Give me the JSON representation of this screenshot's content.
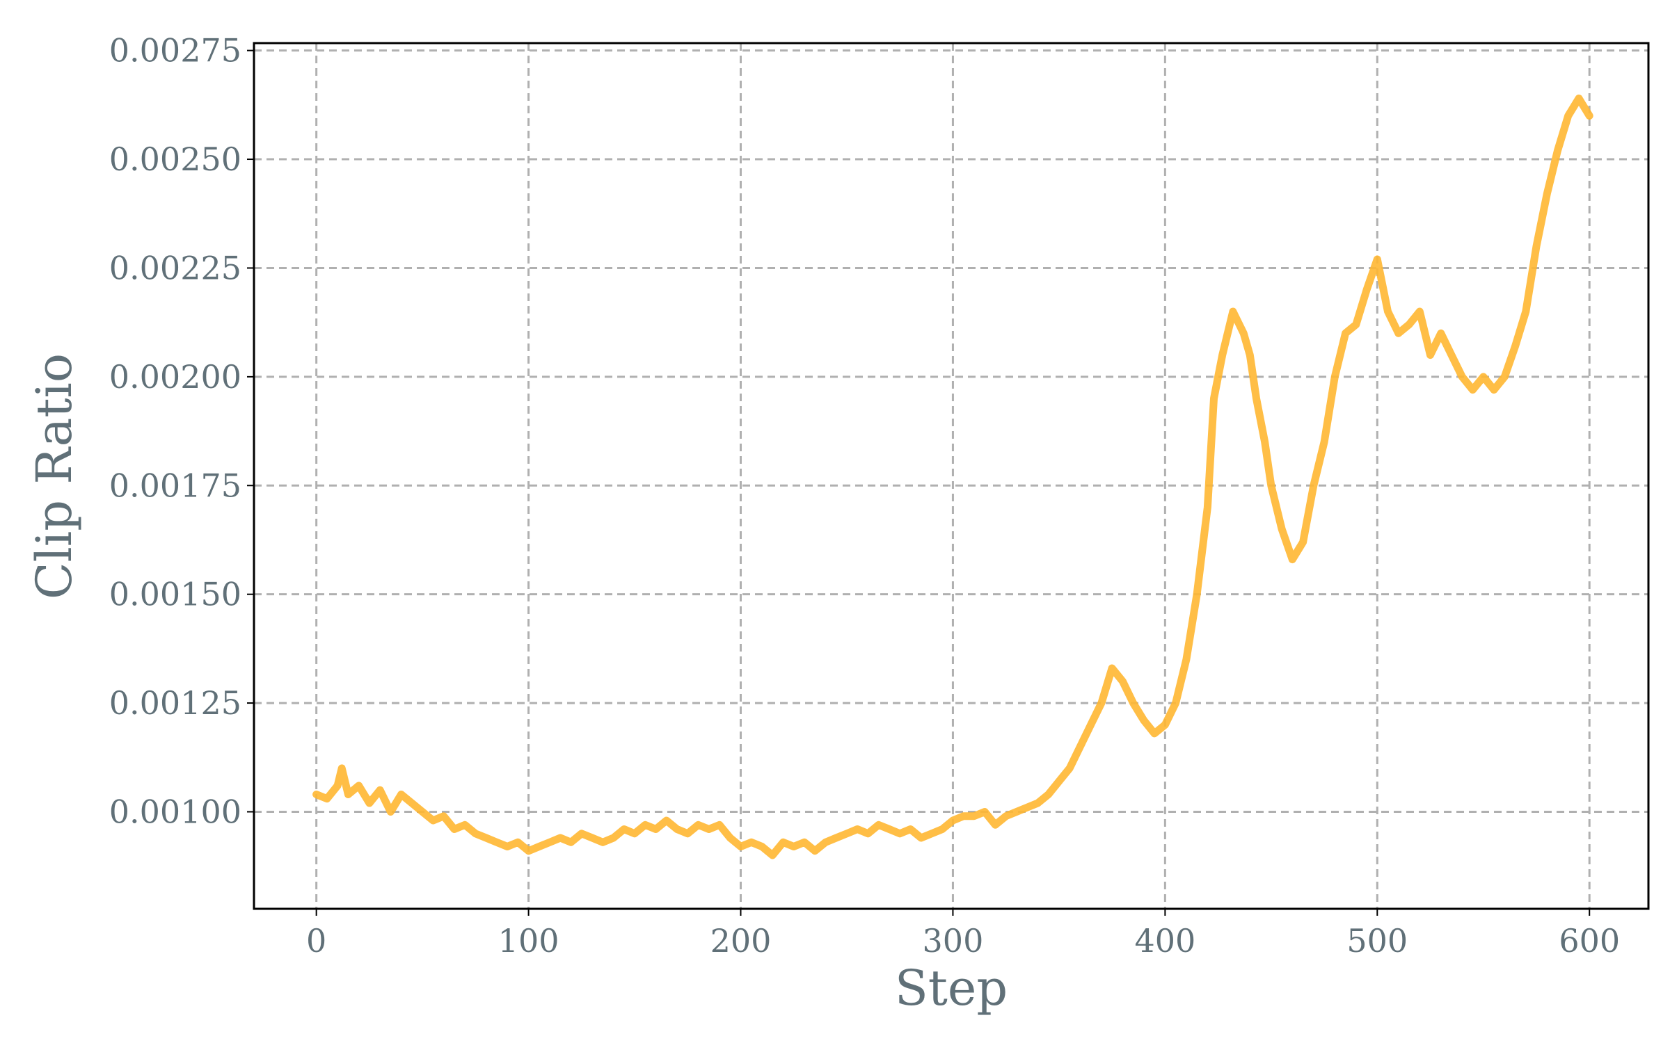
{
  "chart_data": {
    "type": "line",
    "title": "",
    "xlabel": "Step",
    "ylabel": "Clip Ratio",
    "xlim": [
      -29.4,
      627.8
    ],
    "ylim": [
      0.000777,
      0.002767
    ],
    "xticks": [
      0,
      100,
      200,
      300,
      400,
      500,
      600
    ],
    "yticks": [
      "0.00100",
      "0.00125",
      "0.00150",
      "0.00175",
      "0.00200",
      "0.00225",
      "0.00250",
      "0.00275"
    ],
    "grid": true,
    "color": "#ffb732",
    "series": [
      {
        "x": [
          0,
          5,
          10,
          12,
          15,
          20,
          25,
          30,
          35,
          40,
          45,
          50,
          55,
          60,
          65,
          70,
          75,
          80,
          85,
          90,
          95,
          100,
          105,
          110,
          115,
          120,
          125,
          130,
          135,
          140,
          145,
          150,
          155,
          160,
          165,
          170,
          175,
          180,
          185,
          190,
          195,
          200,
          205,
          210,
          215,
          220,
          225,
          230,
          235,
          240,
          245,
          250,
          255,
          260,
          265,
          270,
          275,
          280,
          285,
          290,
          295,
          300,
          305,
          310,
          315,
          320,
          325,
          330,
          335,
          340,
          345,
          350,
          355,
          360,
          365,
          370,
          375,
          380,
          385,
          390,
          395,
          400,
          405,
          410,
          415,
          420,
          423,
          427,
          432,
          437,
          440,
          443,
          447,
          450,
          455,
          460,
          465,
          470,
          475,
          480,
          485,
          490,
          495,
          500,
          505,
          510,
          515,
          520,
          525,
          530,
          535,
          540,
          545,
          550,
          555,
          560,
          565,
          570,
          575,
          580,
          585,
          590,
          595,
          600
        ],
        "y": [
          0.00104,
          0.00103,
          0.00106,
          0.0011,
          0.00104,
          0.00106,
          0.00102,
          0.00105,
          0.001,
          0.00104,
          0.00102,
          0.001,
          0.00098,
          0.00099,
          0.00096,
          0.00097,
          0.00095,
          0.00094,
          0.00093,
          0.00092,
          0.00093,
          0.00091,
          0.00092,
          0.00093,
          0.00094,
          0.00093,
          0.00095,
          0.00094,
          0.00093,
          0.00094,
          0.00096,
          0.00095,
          0.00097,
          0.00096,
          0.00098,
          0.00096,
          0.00095,
          0.00097,
          0.00096,
          0.00097,
          0.00094,
          0.00092,
          0.00093,
          0.00092,
          0.0009,
          0.00093,
          0.00092,
          0.00093,
          0.00091,
          0.00093,
          0.00094,
          0.00095,
          0.00096,
          0.00095,
          0.00097,
          0.00096,
          0.00095,
          0.00096,
          0.00094,
          0.00095,
          0.00096,
          0.00098,
          0.00099,
          0.00099,
          0.001,
          0.00097,
          0.00099,
          0.001,
          0.00101,
          0.00102,
          0.00104,
          0.00107,
          0.0011,
          0.00115,
          0.0012,
          0.00125,
          0.00133,
          0.0013,
          0.00125,
          0.00121,
          0.00118,
          0.0012,
          0.00125,
          0.00135,
          0.0015,
          0.0017,
          0.00195,
          0.00205,
          0.00215,
          0.0021,
          0.00205,
          0.00195,
          0.00185,
          0.00175,
          0.00165,
          0.00158,
          0.00162,
          0.00175,
          0.00185,
          0.002,
          0.0021,
          0.00212,
          0.0022,
          0.00227,
          0.00215,
          0.0021,
          0.00212,
          0.00215,
          0.00205,
          0.0021,
          0.00205,
          0.002,
          0.00197,
          0.002,
          0.00197,
          0.002,
          0.00207,
          0.00215,
          0.0023,
          0.00242,
          0.00252,
          0.0026,
          0.00264,
          0.0026
        ]
      }
    ]
  }
}
